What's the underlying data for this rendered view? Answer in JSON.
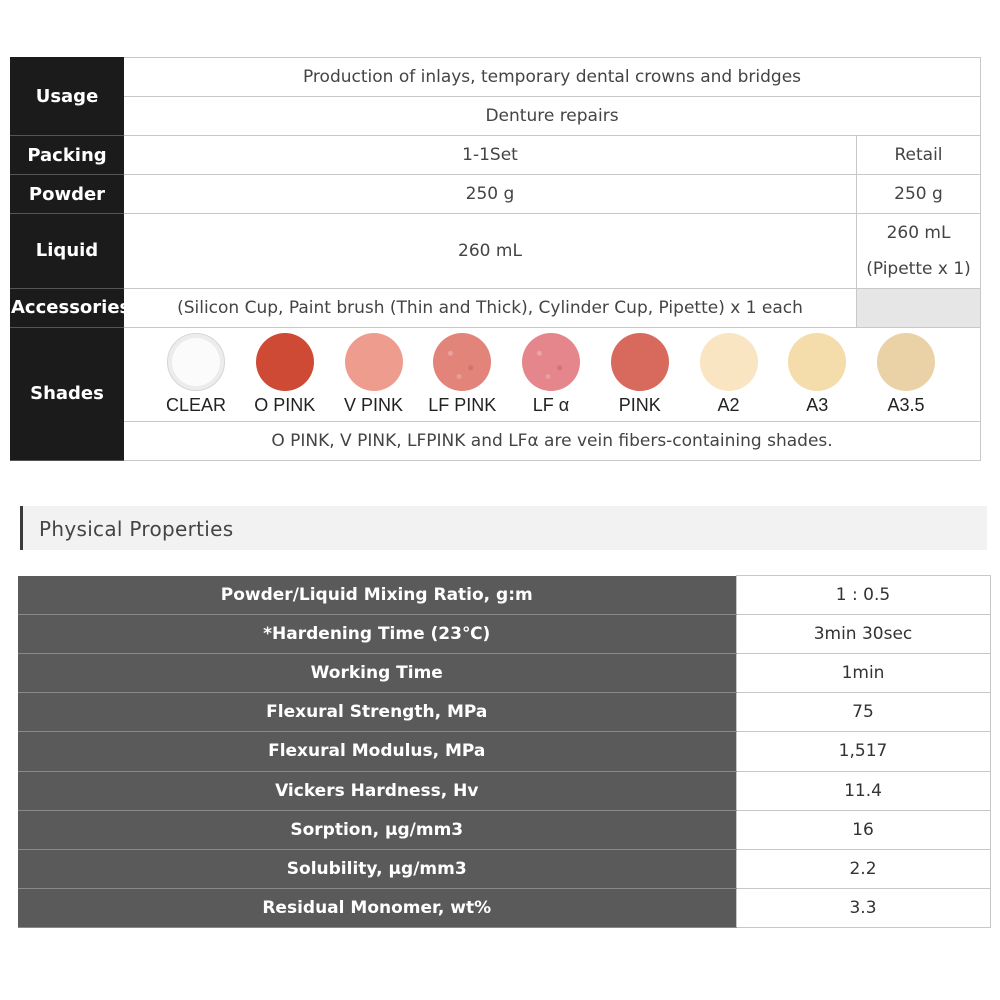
{
  "spec": {
    "usage": {
      "label": "Usage",
      "lines": [
        "Production of inlays, temporary dental crowns and bridges",
        "Denture repairs"
      ]
    },
    "packing": {
      "label": "Packing",
      "set": "1-1Set",
      "retail": "Retail"
    },
    "powder": {
      "label": "Powder",
      "set": "250 g",
      "retail": "250 g"
    },
    "liquid": {
      "label": "Liquid",
      "set": "260 mL",
      "retail_line1": "260 mL",
      "retail_line2": "(Pipette x 1)"
    },
    "accessories": {
      "label": "Accessories",
      "text": "(Silicon Cup, Paint brush (Thin and Thick), Cylinder Cup, Pipette) x 1 each"
    },
    "shades": {
      "label": "Shades",
      "items": [
        {
          "name": "CLEAR",
          "color": "#f6f6f6"
        },
        {
          "name": "O PINK",
          "color": "#cf4a35"
        },
        {
          "name": "V PINK",
          "color": "#ee9c8e"
        },
        {
          "name": "LF PINK",
          "color": "#e3847a"
        },
        {
          "name": "LF α",
          "color": "#e5858c"
        },
        {
          "name": "PINK",
          "color": "#d8695d"
        },
        {
          "name": "A2",
          "color": "#f9e5c2"
        },
        {
          "name": "A3",
          "color": "#f4dcab"
        },
        {
          "name": "A3.5",
          "color": "#ead2a6"
        }
      ],
      "note": "O PINK, V PINK, LFPINK and LFα are vein fibers-containing shades."
    }
  },
  "section": {
    "title": "Physical Properties"
  },
  "properties": [
    {
      "name": "Powder/Liquid Mixing Ratio, g:m",
      "value": "1 : 0.5"
    },
    {
      "name": "*Hardening Time (23℃)",
      "value": "3min 30sec"
    },
    {
      "name": "Working Time",
      "value": "1min"
    },
    {
      "name": "Flexural Strength, MPa",
      "value": "75"
    },
    {
      "name": "Flexural Modulus, MPa",
      "value": "1,517"
    },
    {
      "name": "Vickers Hardness, Hv",
      "value": "11.4"
    },
    {
      "name": "Sorption, μg/mm3",
      "value": "16"
    },
    {
      "name": "Solubility, μg/mm3",
      "value": "2.2"
    },
    {
      "name": "Residual Monomer, wt%",
      "value": "3.3"
    }
  ]
}
